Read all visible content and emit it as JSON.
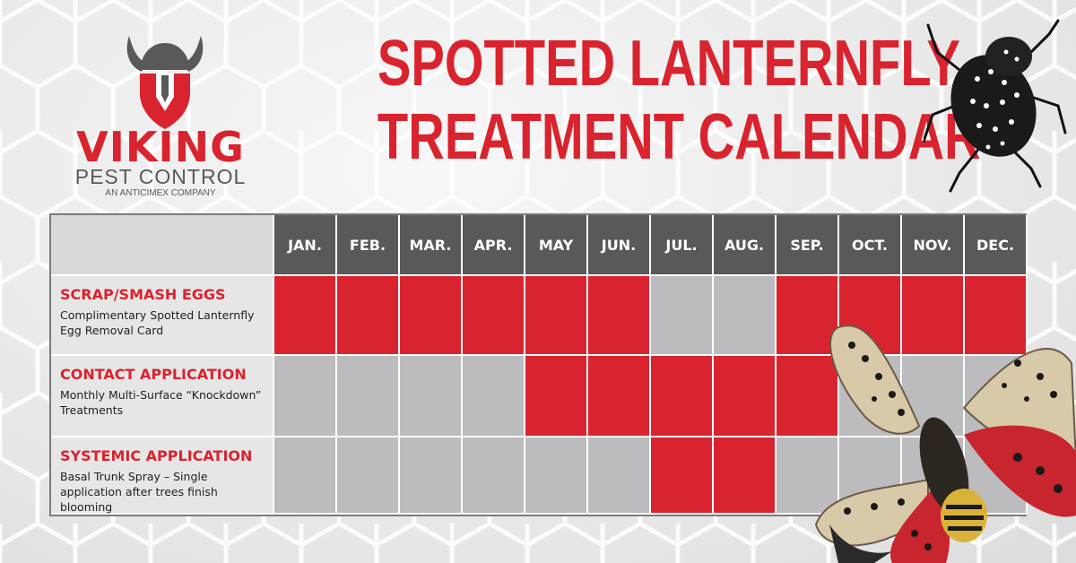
{
  "logo": {
    "name": "VIKING",
    "subtitle": "PEST CONTROL",
    "tagline": "AN ANTICIMEX COMPANY"
  },
  "headline": {
    "line1": "SPOTTED LANTERNFLY",
    "line2": "TREATMENT CALENDAR"
  },
  "colors": {
    "brand_red": "#d9232e",
    "header_gray": "#595959",
    "inactive_gray": "#bcbcbe",
    "label_bg": "#e6e6e6"
  },
  "calendar": {
    "months": [
      "JAN.",
      "FEB.",
      "MAR.",
      "APR.",
      "MAY",
      "JUN.",
      "JUL.",
      "AUG.",
      "SEP.",
      "OCT.",
      "NOV.",
      "DEC."
    ],
    "rows": [
      {
        "title": "SCRAP/SMASH EGGS",
        "description": "Complimentary Spotted Lanternfly Egg Removal Card",
        "active": [
          1,
          1,
          1,
          1,
          1,
          1,
          0,
          0,
          1,
          1,
          1,
          1
        ]
      },
      {
        "title": "CONTACT APPLICATION",
        "description": "Monthly Multi-Surface “Knockdown” Treatments",
        "active": [
          0,
          0,
          0,
          0,
          1,
          1,
          1,
          1,
          1,
          0,
          0,
          0
        ]
      },
      {
        "title": "SYSTEMIC APPLICATION",
        "description": "Basal Trunk Spray – Single application after trees finish blooming",
        "active": [
          0,
          0,
          0,
          0,
          0,
          0,
          1,
          1,
          0,
          0,
          0,
          0
        ]
      }
    ]
  },
  "images": {
    "top_insect": "spotted-lanternfly-nymph",
    "bottom_insect": "spotted-lanternfly-adult"
  }
}
